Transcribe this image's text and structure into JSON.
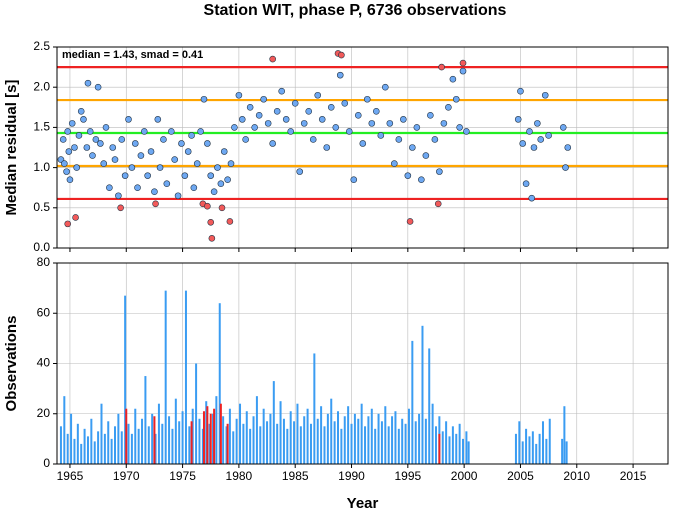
{
  "chart_data": [
    {
      "type": "scatter",
      "title": "Station WIT, phase P, 6736 observations",
      "annotation": "median = 1.43, smad = 0.41",
      "y_label": "Median residual [s]",
      "xlim": [
        1963.85,
        2018.1
      ],
      "xticks": [
        1965,
        1970,
        1975,
        1980,
        1985,
        1990,
        1995,
        2000,
        2005,
        2010,
        2015
      ],
      "ylim": [
        0,
        2.5
      ],
      "yticks": [
        {
          "value": 0,
          "label": "0.0"
        },
        {
          "value": 0.5,
          "label": "0.5"
        },
        {
          "value": 1,
          "label": "1.0"
        },
        {
          "value": 1.5,
          "label": "1.5"
        },
        {
          "value": 2,
          "label": "2.0"
        },
        {
          "value": 2.5,
          "label": "2.5"
        }
      ],
      "grid": true,
      "reference_lines": [
        {
          "value": 2.25,
          "color": "#ee2222"
        },
        {
          "value": 1.84,
          "color": "#ffa500"
        },
        {
          "value": 1.43,
          "color": "#22ee22"
        },
        {
          "value": 1.02,
          "color": "#ffa500"
        },
        {
          "value": 0.61,
          "color": "#ee2222"
        }
      ],
      "series": [
        {
          "color": "#6ea8f2",
          "x": [
            1964.2,
            1964.4,
            1964.5,
            1964.7,
            1964.8,
            1964.9,
            1965.0,
            1965.2,
            1965.4,
            1965.6,
            1965.8,
            1966.0,
            1966.2,
            1966.5,
            1966.6,
            1966.8,
            1967.0,
            1967.3,
            1967.5,
            1967.7,
            1968.0,
            1968.2,
            1968.5,
            1968.8,
            1969.0,
            1969.3,
            1969.6,
            1969.9,
            1970.2,
            1970.5,
            1970.8,
            1971.0,
            1971.3,
            1971.6,
            1971.9,
            1972.2,
            1972.5,
            1972.8,
            1973.0,
            1973.3,
            1973.6,
            1974.0,
            1974.3,
            1974.6,
            1974.9,
            1975.2,
            1975.5,
            1975.8,
            1976.0,
            1976.3,
            1976.6,
            1976.9,
            1977.2,
            1977.5,
            1977.8,
            1978.1,
            1978.4,
            1978.7,
            1979.0,
            1979.3,
            1979.6,
            1980.0,
            1980.3,
            1980.6,
            1981.0,
            1981.4,
            1981.8,
            1982.2,
            1982.6,
            1983.0,
            1983.4,
            1983.8,
            1984.2,
            1984.6,
            1985.0,
            1985.4,
            1985.8,
            1986.2,
            1986.6,
            1987.0,
            1987.4,
            1987.8,
            1988.2,
            1988.6,
            1989.0,
            1989.4,
            1989.8,
            1990.2,
            1990.6,
            1991.0,
            1991.4,
            1991.8,
            1992.2,
            1992.6,
            1993.0,
            1993.4,
            1993.8,
            1994.2,
            1994.6,
            1995.0,
            1995.4,
            1995.8,
            1996.2,
            1996.6,
            1997.0,
            1997.4,
            1997.8,
            1998.2,
            1998.6,
            1999.0,
            1999.3,
            1999.6,
            1999.9,
            2000.2,
            2004.8,
            2005.0,
            2005.2,
            2005.5,
            2005.8,
            2006.0,
            2006.2,
            2006.5,
            2006.8,
            2007.2,
            2007.5,
            2008.8,
            2009.0,
            2009.2
          ],
          "values": [
            1.1,
            1.35,
            1.05,
            0.95,
            1.45,
            1.2,
            0.85,
            1.55,
            1.25,
            1.0,
            1.4,
            1.7,
            1.6,
            1.25,
            2.05,
            1.45,
            1.15,
            1.35,
            2.0,
            1.3,
            1.05,
            1.5,
            0.75,
            1.25,
            1.1,
            0.65,
            1.35,
            0.9,
            1.6,
            1.0,
            1.3,
            0.75,
            1.15,
            1.45,
            0.9,
            1.2,
            0.7,
            1.6,
            1.0,
            1.35,
            0.8,
            1.45,
            1.1,
            0.65,
            1.3,
            0.9,
            1.2,
            1.4,
            0.75,
            1.05,
            1.45,
            1.85,
            1.3,
            0.9,
            0.7,
            1.0,
            0.8,
            1.2,
            0.85,
            1.05,
            1.5,
            1.9,
            1.6,
            1.35,
            1.75,
            1.5,
            1.65,
            1.85,
            1.55,
            1.3,
            1.7,
            1.95,
            1.6,
            1.45,
            1.8,
            0.95,
            1.55,
            1.7,
            1.35,
            1.9,
            1.6,
            1.25,
            1.75,
            1.5,
            2.15,
            1.8,
            1.45,
            0.85,
            1.65,
            1.3,
            1.85,
            1.55,
            1.7,
            1.4,
            2.0,
            1.55,
            1.05,
            1.35,
            1.6,
            0.9,
            1.25,
            1.5,
            0.85,
            1.15,
            1.65,
            1.35,
            0.95,
            1.55,
            1.75,
            2.1,
            1.85,
            1.5,
            2.2,
            1.45,
            1.6,
            1.95,
            1.3,
            0.8,
            1.45,
            0.62,
            1.25,
            1.55,
            1.35,
            1.9,
            1.4,
            1.5,
            1.0,
            1.25
          ]
        },
        {
          "color": "#f25a5a",
          "x": [
            1964.8,
            1965.5,
            1969.5,
            1972.6,
            1976.8,
            1977.2,
            1977.5,
            1977.6,
            1978.5,
            1979.2,
            1983.0,
            1988.8,
            1989.1,
            1995.2,
            1997.7,
            1998.0,
            1999.9
          ],
          "values": [
            0.3,
            0.38,
            0.5,
            0.55,
            0.55,
            0.52,
            0.32,
            0.12,
            0.5,
            0.33,
            2.35,
            2.42,
            2.4,
            0.33,
            0.55,
            2.25,
            2.3
          ]
        }
      ]
    },
    {
      "type": "bar",
      "x_label": "Year",
      "y_label": "Observations",
      "xlim": [
        1963.85,
        2018.1
      ],
      "xticks": [
        1965,
        1970,
        1975,
        1980,
        1985,
        1990,
        1995,
        2000,
        2005,
        2010,
        2015
      ],
      "ylim": [
        0,
        80
      ],
      "yticks": [
        0,
        20,
        40,
        60,
        80
      ],
      "grid": true,
      "series": [
        {
          "color": "#3a9cf2",
          "x": [
            1964.2,
            1964.5,
            1964.8,
            1965.1,
            1965.4,
            1965.7,
            1966.0,
            1966.3,
            1966.6,
            1966.9,
            1967.2,
            1967.5,
            1967.8,
            1968.1,
            1968.4,
            1968.7,
            1969.0,
            1969.3,
            1969.6,
            1969.9,
            1970.2,
            1970.5,
            1970.8,
            1971.1,
            1971.4,
            1971.7,
            1972.0,
            1972.3,
            1972.6,
            1972.9,
            1973.2,
            1973.5,
            1973.8,
            1974.1,
            1974.4,
            1974.7,
            1975.0,
            1975.3,
            1975.6,
            1975.9,
            1976.2,
            1976.5,
            1976.8,
            1977.1,
            1977.4,
            1977.7,
            1978.0,
            1978.3,
            1978.6,
            1978.9,
            1979.2,
            1979.5,
            1979.8,
            1980.1,
            1980.4,
            1980.7,
            1981.0,
            1981.3,
            1981.6,
            1981.9,
            1982.2,
            1982.5,
            1982.8,
            1983.1,
            1983.4,
            1983.7,
            1984.0,
            1984.3,
            1984.6,
            1984.9,
            1985.2,
            1985.5,
            1985.8,
            1986.1,
            1986.4,
            1986.7,
            1987.0,
            1987.3,
            1987.6,
            1987.9,
            1988.2,
            1988.5,
            1988.8,
            1989.1,
            1989.4,
            1989.7,
            1990.0,
            1990.3,
            1990.6,
            1990.9,
            1991.2,
            1991.5,
            1991.8,
            1992.1,
            1992.4,
            1992.7,
            1993.0,
            1993.3,
            1993.6,
            1993.9,
            1994.2,
            1994.5,
            1994.8,
            1995.1,
            1995.4,
            1995.7,
            1996.0,
            1996.3,
            1996.6,
            1996.9,
            1997.2,
            1997.5,
            1997.8,
            1998.1,
            1998.4,
            1998.7,
            1999.0,
            1999.3,
            1999.6,
            1999.9,
            2000.2,
            2000.4,
            2004.6,
            2004.9,
            2005.2,
            2005.5,
            2005.8,
            2006.1,
            2006.4,
            2006.7,
            2007.0,
            2007.3,
            2007.6,
            2008.7,
            2008.9,
            2009.1
          ],
          "values": [
            15,
            27,
            12,
            20,
            10,
            16,
            8,
            14,
            11,
            18,
            9,
            13,
            24,
            12,
            17,
            10,
            15,
            20,
            13,
            67,
            16,
            12,
            22,
            14,
            18,
            35,
            15,
            20,
            12,
            24,
            16,
            69,
            19,
            14,
            26,
            17,
            21,
            69,
            15,
            22,
            40,
            18,
            14,
            25,
            16,
            20,
            27,
            64,
            19,
            15,
            22,
            13,
            18,
            24,
            16,
            21,
            14,
            19,
            27,
            15,
            22,
            17,
            20,
            33,
            16,
            25,
            18,
            14,
            21,
            17,
            24,
            15,
            19,
            22,
            16,
            44,
            18,
            23,
            15,
            20,
            26,
            17,
            21,
            14,
            19,
            23,
            16,
            20,
            18,
            24,
            15,
            19,
            22,
            14,
            20,
            17,
            23,
            15,
            19,
            21,
            14,
            18,
            16,
            22,
            49,
            17,
            20,
            55,
            18,
            46,
            24,
            15,
            19,
            13,
            17,
            11,
            15,
            12,
            16,
            10,
            13,
            9,
            12,
            17,
            9,
            14,
            11,
            13,
            8,
            12,
            17,
            10,
            18,
            10,
            23,
            9
          ]
        },
        {
          "color": "#ee2222",
          "x": [
            1970.0,
            1972.5,
            1975.8,
            1976.9,
            1977.2,
            1977.5,
            1977.8,
            1978.4,
            1979.0,
            1997.8
          ],
          "values": [
            22,
            19,
            17,
            21,
            23,
            20,
            22,
            24,
            16,
            12
          ]
        }
      ]
    }
  ]
}
